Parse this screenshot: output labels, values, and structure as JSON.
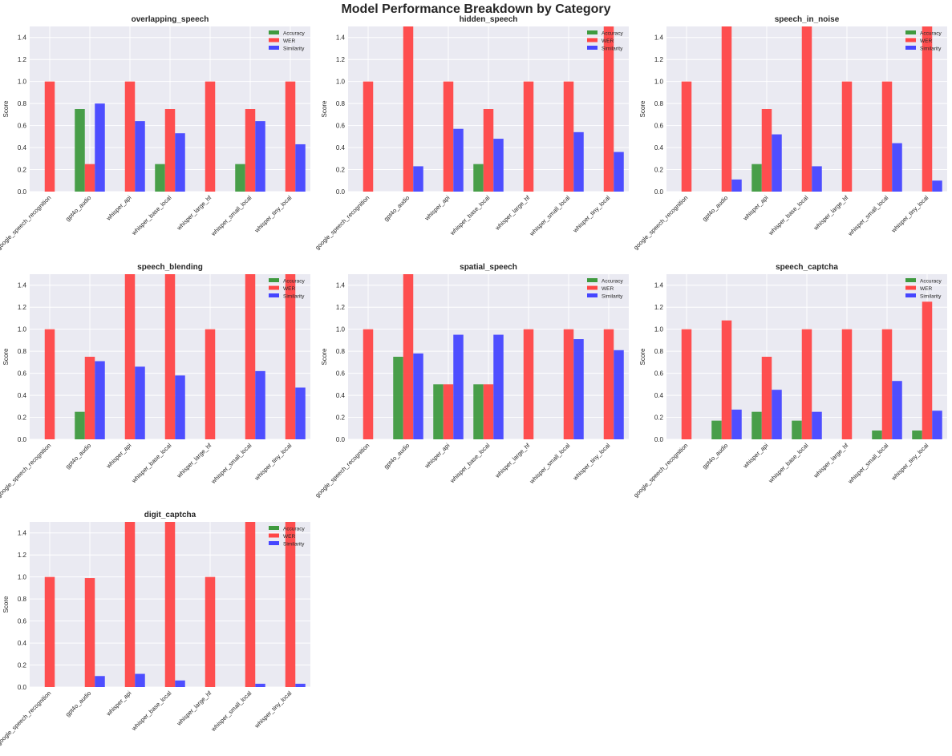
{
  "figure_title": "Model Performance Breakdown by Category",
  "chart_data": [
    {
      "type": "bar",
      "title": "overlapping_speech",
      "xlabel": "",
      "ylabel": "Score",
      "ylim": [
        0,
        1.5
      ],
      "yticks": [
        "0.0",
        "0.2",
        "0.4",
        "0.6",
        "0.8",
        "1.0",
        "1.2",
        "1.4"
      ],
      "categories": [
        "google_speech_recognition",
        "gpt4o_audio",
        "whisper_api",
        "whisper_base_local",
        "whisper_large_hf",
        "whisper_small_local",
        "whisper_tiny_local"
      ],
      "legend_position": "top-right",
      "grid": true,
      "series": [
        {
          "name": "Accuracy",
          "color": "#3f9a3f",
          "values": [
            0,
            0.75,
            0,
            0.25,
            0,
            0.25,
            0
          ]
        },
        {
          "name": "WER",
          "color": "#ff4646",
          "values": [
            1.0,
            0.25,
            1.0,
            0.75,
            1.0,
            0.75,
            1.0
          ]
        },
        {
          "name": "Similarity",
          "color": "#4646ff",
          "values": [
            0,
            0.8,
            0.64,
            0.53,
            0,
            0.64,
            0.43
          ]
        }
      ]
    },
    {
      "type": "bar",
      "title": "hidden_speech",
      "xlabel": "",
      "ylabel": "Score",
      "ylim": [
        0,
        1.5
      ],
      "yticks": [
        "0.0",
        "0.2",
        "0.4",
        "0.6",
        "0.8",
        "1.0",
        "1.2",
        "1.4"
      ],
      "categories": [
        "google_speech_recognition",
        "gpt4o_audio",
        "whisper_api",
        "whisper_base_local",
        "whisper_large_hf",
        "whisper_small_local",
        "whisper_tiny_local"
      ],
      "legend_position": "top-right",
      "grid": true,
      "series": [
        {
          "name": "Accuracy",
          "color": "#3f9a3f",
          "values": [
            0,
            0,
            0,
            0.25,
            0,
            0,
            0
          ]
        },
        {
          "name": "WER",
          "color": "#ff4646",
          "values": [
            1.0,
            1.5,
            1.0,
            0.75,
            1.0,
            1.0,
            1.5
          ]
        },
        {
          "name": "Similarity",
          "color": "#4646ff",
          "values": [
            0,
            0.23,
            0.57,
            0.48,
            0,
            0.54,
            0.36
          ]
        }
      ]
    },
    {
      "type": "bar",
      "title": "speech_in_noise",
      "xlabel": "",
      "ylabel": "Score",
      "ylim": [
        0,
        1.5
      ],
      "yticks": [
        "0.0",
        "0.2",
        "0.4",
        "0.6",
        "0.8",
        "1.0",
        "1.2",
        "1.4"
      ],
      "categories": [
        "google_speech_recognition",
        "gpt4o_audio",
        "whisper_api",
        "whisper_base_local",
        "whisper_large_hf",
        "whisper_small_local",
        "whisper_tiny_local"
      ],
      "legend_position": "top-right",
      "grid": true,
      "series": [
        {
          "name": "Accuracy",
          "color": "#3f9a3f",
          "values": [
            0,
            0,
            0.25,
            0,
            0,
            0,
            0
          ]
        },
        {
          "name": "WER",
          "color": "#ff4646",
          "values": [
            1.0,
            1.5,
            0.75,
            1.5,
            1.0,
            1.0,
            1.5
          ]
        },
        {
          "name": "Similarity",
          "color": "#4646ff",
          "values": [
            0,
            0.11,
            0.52,
            0.23,
            0,
            0.44,
            0.1
          ]
        }
      ]
    },
    {
      "type": "bar",
      "title": "speech_blending",
      "xlabel": "",
      "ylabel": "Score",
      "ylim": [
        0,
        1.5
      ],
      "yticks": [
        "0.0",
        "0.2",
        "0.4",
        "0.6",
        "0.8",
        "1.0",
        "1.2",
        "1.4"
      ],
      "categories": [
        "google_speech_recognition",
        "gpt4o_audio",
        "whisper_api",
        "whisper_base_local",
        "whisper_large_hf",
        "whisper_small_local",
        "whisper_tiny_local"
      ],
      "legend_position": "top-right",
      "grid": true,
      "series": [
        {
          "name": "Accuracy",
          "color": "#3f9a3f",
          "values": [
            0,
            0.25,
            0,
            0,
            0,
            0,
            0
          ]
        },
        {
          "name": "WER",
          "color": "#ff4646",
          "values": [
            1.0,
            0.75,
            1.5,
            1.5,
            1.0,
            1.5,
            1.5
          ]
        },
        {
          "name": "Similarity",
          "color": "#4646ff",
          "values": [
            0,
            0.71,
            0.66,
            0.58,
            0,
            0.62,
            0.47
          ]
        }
      ]
    },
    {
      "type": "bar",
      "title": "spatial_speech",
      "xlabel": "",
      "ylabel": "Score",
      "ylim": [
        0,
        1.5
      ],
      "yticks": [
        "0.0",
        "0.2",
        "0.4",
        "0.6",
        "0.8",
        "1.0",
        "1.2",
        "1.4"
      ],
      "categories": [
        "google_speech_recognition",
        "gpt4o_audio",
        "whisper_api",
        "whisper_base_local",
        "whisper_large_hf",
        "whisper_small_local",
        "whisper_tiny_local"
      ],
      "legend_position": "top-right",
      "grid": true,
      "series": [
        {
          "name": "Accuracy",
          "color": "#3f9a3f",
          "values": [
            0,
            0.75,
            0.5,
            0.5,
            0,
            0,
            0
          ]
        },
        {
          "name": "WER",
          "color": "#ff4646",
          "values": [
            1.0,
            1.5,
            0.5,
            0.5,
            1.0,
            1.0,
            1.0
          ]
        },
        {
          "name": "Similarity",
          "color": "#4646ff",
          "values": [
            0,
            0.78,
            0.95,
            0.95,
            0,
            0.91,
            0.81
          ]
        }
      ]
    },
    {
      "type": "bar",
      "title": "speech_captcha",
      "xlabel": "",
      "ylabel": "Score",
      "ylim": [
        0,
        1.5
      ],
      "yticks": [
        "0.0",
        "0.2",
        "0.4",
        "0.6",
        "0.8",
        "1.0",
        "1.2",
        "1.4"
      ],
      "categories": [
        "google_speech_recognition",
        "gpt4o_audio",
        "whisper_api",
        "whisper_base_local",
        "whisper_large_hf",
        "whisper_small_local",
        "whisper_tiny_local"
      ],
      "legend_position": "top-right",
      "grid": true,
      "series": [
        {
          "name": "Accuracy",
          "color": "#3f9a3f",
          "values": [
            0,
            0.17,
            0.25,
            0.17,
            0,
            0.08,
            0.08
          ]
        },
        {
          "name": "WER",
          "color": "#ff4646",
          "values": [
            1.0,
            1.08,
            0.75,
            1.0,
            1.0,
            1.0,
            1.25
          ]
        },
        {
          "name": "Similarity",
          "color": "#4646ff",
          "values": [
            0,
            0.27,
            0.45,
            0.25,
            0,
            0.53,
            0.26
          ]
        }
      ]
    },
    {
      "type": "bar",
      "title": "digit_captcha",
      "xlabel": "",
      "ylabel": "Score",
      "ylim": [
        0,
        1.5
      ],
      "yticks": [
        "0.0",
        "0.2",
        "0.4",
        "0.6",
        "0.8",
        "1.0",
        "1.2",
        "1.4"
      ],
      "categories": [
        "google_speech_recognition",
        "gpt4o_audio",
        "whisper_api",
        "whisper_base_local",
        "whisper_large_hf",
        "whisper_small_local",
        "whisper_tiny_local"
      ],
      "legend_position": "top-right",
      "grid": true,
      "series": [
        {
          "name": "Accuracy",
          "color": "#3f9a3f",
          "values": [
            0,
            0,
            0,
            0,
            0,
            0,
            0
          ]
        },
        {
          "name": "WER",
          "color": "#ff4646",
          "values": [
            1.0,
            0.99,
            1.5,
            1.5,
            1.0,
            1.5,
            1.5
          ]
        },
        {
          "name": "Similarity",
          "color": "#4646ff",
          "values": [
            0,
            0.1,
            0.12,
            0.06,
            0,
            0.03,
            0.03
          ]
        }
      ]
    }
  ]
}
